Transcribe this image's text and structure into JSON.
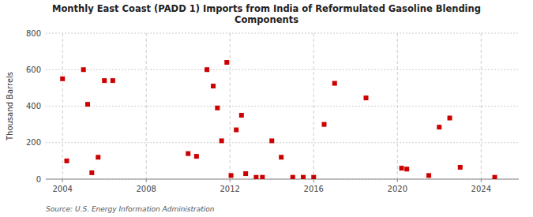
{
  "chart_data": {
    "type": "scatter",
    "title": "Monthly East Coast (PADD 1) Imports from India of Reformulated Gasoline Blending\nComponents",
    "ylabel": "Thousand Barrels",
    "annotations": [
      "Source: U.S. Energy Information Administration"
    ],
    "color": "#cc0000",
    "marker": "square",
    "grid": true,
    "xlim": [
      2003.2,
      2025.8
    ],
    "ylim": [
      0,
      800
    ],
    "xticks": [
      2004,
      2008,
      2012,
      2016,
      2020,
      2024
    ],
    "yticks": [
      0,
      200,
      400,
      600,
      800
    ],
    "x": [
      2004.0,
      2004.2,
      2005.0,
      2005.2,
      2005.4,
      2005.7,
      2006.0,
      2006.4,
      2010.0,
      2010.4,
      2010.9,
      2011.2,
      2011.4,
      2011.6,
      2011.85,
      2012.05,
      2012.3,
      2012.55,
      2012.75,
      2013.25,
      2013.55,
      2014.0,
      2014.45,
      2015.0,
      2015.5,
      2016.0,
      2016.5,
      2017.0,
      2018.5,
      2020.2,
      2020.45,
      2021.5,
      2022.0,
      2022.5,
      2023.0,
      2024.65
    ],
    "values": [
      550,
      100,
      600,
      410,
      35,
      120,
      540,
      540,
      140,
      125,
      600,
      510,
      390,
      210,
      640,
      20,
      270,
      350,
      30,
      10,
      10,
      210,
      120,
      10,
      10,
      10,
      300,
      525,
      445,
      60,
      55,
      20,
      285,
      335,
      65,
      10
    ]
  }
}
